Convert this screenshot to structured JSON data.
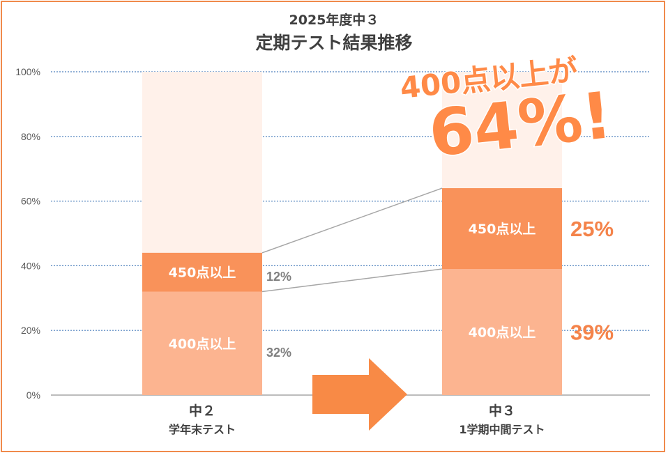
{
  "title_line1": "2025年度中３",
  "title_line2": "定期テスト結果推移",
  "callout": {
    "line1": "400点以上が",
    "line2": "64%!"
  },
  "colors": {
    "bg_segment": "#fff1ea",
    "seg_450": "#f9925a",
    "seg_400": "#fcb490",
    "grid": "#4f81bd",
    "accent": "#f4834a",
    "arrow": "#f88a46",
    "frame": "#f08a4b"
  },
  "chart_data": {
    "type": "bar",
    "stacked": true,
    "yticks": [
      "0%",
      "20%",
      "40%",
      "60%",
      "80%",
      "100%"
    ],
    "ylim": [
      0,
      100
    ],
    "grid": true,
    "categories": [
      {
        "line1": "中２",
        "line2": "学年末テスト"
      },
      {
        "line1": "中３",
        "line2": "1学期中間テスト"
      }
    ],
    "series": [
      {
        "name": "400点以上",
        "values": [
          32,
          39
        ],
        "labels": [
          "32%",
          "39%"
        ]
      },
      {
        "name": "450点以上",
        "values": [
          12,
          25
        ],
        "labels": [
          "12%",
          "25%"
        ]
      }
    ]
  }
}
